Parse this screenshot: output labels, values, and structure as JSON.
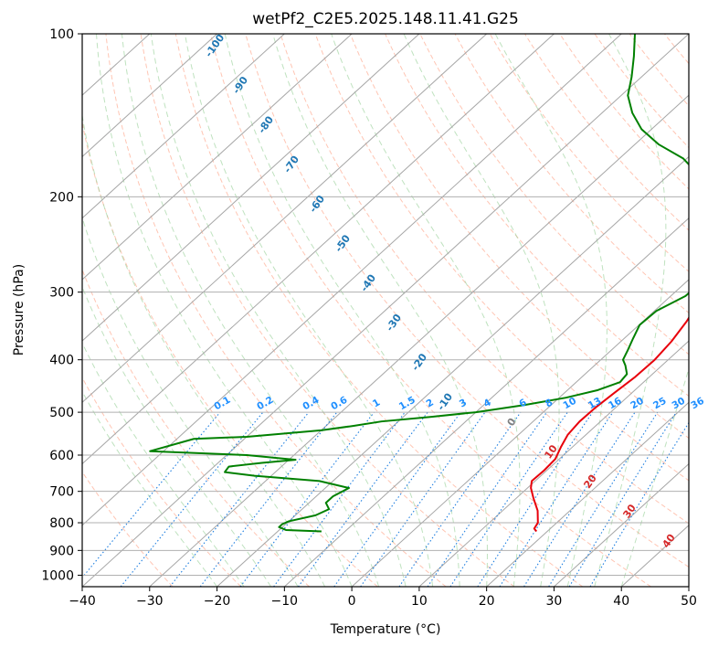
{
  "chart_data": {
    "type": "skew-t",
    "title": "wetPf2_C2E5.2025.148.11.41.G25",
    "xlabel": "Temperature (°C)",
    "ylabel": "Pressure (hPa)",
    "xlim": [
      -40,
      50
    ],
    "ylim": [
      1050,
      100
    ],
    "y_scale": "log",
    "grid": true,
    "x_ticks": [
      -40,
      -30,
      -20,
      -10,
      0,
      10,
      20,
      30,
      40,
      50
    ],
    "y_ticks": [
      1000,
      900,
      800,
      700,
      600,
      500,
      400,
      300,
      200,
      100
    ],
    "isotherms": [
      -100,
      -90,
      -80,
      -70,
      -60,
      -50,
      -40,
      -30,
      -20,
      -10,
      0,
      10,
      20,
      30,
      40
    ],
    "isotherm_labels_cold": [
      "-100",
      "-90",
      "-80",
      "-70",
      "-60",
      "-50",
      "-40",
      "-30",
      "-20",
      "-10"
    ],
    "isotherm_labels_warm": [
      "0",
      "10",
      "20",
      "30",
      "40"
    ],
    "mixing_ratio_labels": [
      "0.1",
      "0.2",
      "0.4",
      "0.6",
      "1",
      "1.5",
      "2",
      "3",
      "4",
      "6",
      "8",
      "10",
      "13",
      "16",
      "20",
      "25",
      "30",
      "36"
    ],
    "mixing_ratios": [
      0.1,
      0.2,
      0.4,
      0.6,
      1,
      1.5,
      2,
      3,
      4,
      6,
      8,
      10,
      13,
      16,
      20,
      25,
      30,
      36
    ],
    "series": [
      {
        "color": "#e8000b",
        "points": [
          [
            18.4,
            830
          ],
          [
            17.6,
            820
          ],
          [
            17.2,
            800
          ],
          [
            15.2,
            760
          ],
          [
            12.5,
            720
          ],
          [
            10.5,
            690
          ],
          [
            9.5,
            670
          ],
          [
            9.6,
            640
          ],
          [
            9.4,
            610
          ],
          [
            8.3,
            580
          ],
          [
            7.3,
            550
          ],
          [
            6.9,
            520
          ],
          [
            7.0,
            490
          ],
          [
            7.4,
            460
          ],
          [
            7.9,
            430
          ],
          [
            8.0,
            400
          ],
          [
            7.5,
            370
          ],
          [
            6.5,
            340
          ],
          [
            5.0,
            310
          ],
          [
            3.5,
            285
          ],
          [
            2.0,
            265
          ],
          [
            0.5,
            245
          ],
          [
            -0.3,
            225
          ],
          [
            -1.3,
            200
          ],
          [
            -2.5,
            180
          ],
          [
            -2.4,
            170
          ],
          [
            -2.5,
            160
          ],
          [
            -3.0,
            150
          ],
          [
            -4.0,
            140
          ],
          [
            -5.5,
            130
          ],
          [
            -7.5,
            120
          ],
          [
            -10.0,
            112
          ],
          [
            -13.0,
            104
          ],
          [
            -15.5,
            100
          ]
        ]
      },
      {
        "color": "#008000",
        "points": [
          [
            -13.5,
            830
          ],
          [
            -19.0,
            825
          ],
          [
            -20.5,
            815
          ],
          [
            -20.5,
            805
          ],
          [
            -20.0,
            795
          ],
          [
            -17.0,
            775
          ],
          [
            -16.0,
            755
          ],
          [
            -17.5,
            735
          ],
          [
            -17.5,
            715
          ],
          [
            -16.5,
            690
          ],
          [
            -22.0,
            670
          ],
          [
            -32.5,
            655
          ],
          [
            -37.5,
            645
          ],
          [
            -37.8,
            630
          ],
          [
            -33.5,
            620
          ],
          [
            -29.0,
            612
          ],
          [
            -37.0,
            600
          ],
          [
            -52.0,
            590
          ],
          [
            -47.5,
            560
          ],
          [
            -40.0,
            555
          ],
          [
            -30.0,
            540
          ],
          [
            -26.0,
            530
          ],
          [
            -22.5,
            520
          ],
          [
            -16.0,
            510
          ],
          [
            -10.0,
            500
          ],
          [
            -4.0,
            485
          ],
          [
            1.0,
            470
          ],
          [
            4.5,
            455
          ],
          [
            6.5,
            440
          ],
          [
            6.2,
            425
          ],
          [
            4.6,
            410
          ],
          [
            3.3,
            400
          ],
          [
            2.5,
            385
          ],
          [
            1.3,
            365
          ],
          [
            0.1,
            345
          ],
          [
            0.3,
            325
          ],
          [
            2.2,
            305
          ],
          [
            2.2,
            290
          ],
          [
            0.5,
            270
          ],
          [
            -2.0,
            245
          ],
          [
            -5.0,
            215
          ],
          [
            -9.5,
            200
          ],
          [
            -14.5,
            185
          ],
          [
            -20.5,
            170
          ],
          [
            -26.5,
            160
          ],
          [
            -31.5,
            150
          ],
          [
            -35.5,
            140
          ],
          [
            -39.0,
            130
          ],
          [
            -41.5,
            120
          ],
          [
            -44.5,
            110
          ],
          [
            -48.0,
            100
          ]
        ]
      }
    ]
  }
}
